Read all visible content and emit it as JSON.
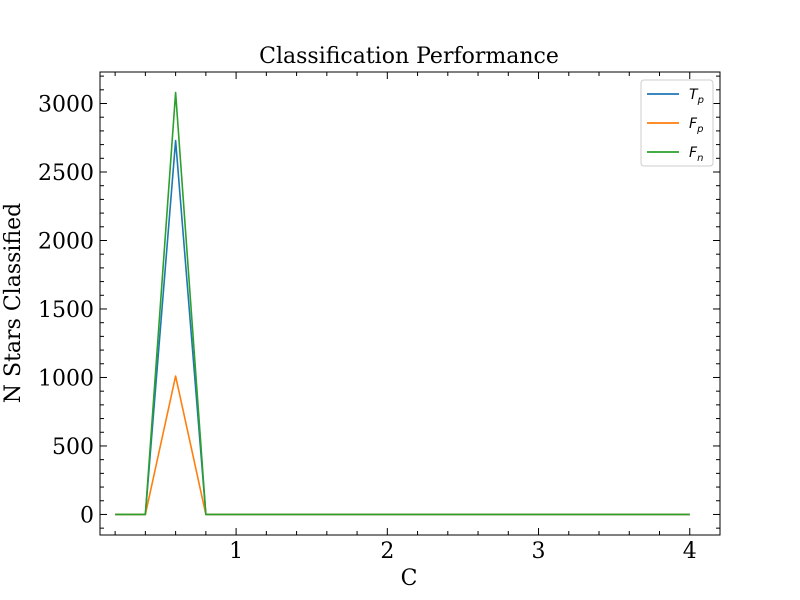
{
  "chart_data": {
    "type": "line",
    "title": "Classification Performance",
    "xlabel": "C",
    "ylabel": "N Stars Classified",
    "xlim": [
      0.1,
      4.2
    ],
    "ylim": [
      -150,
      3230
    ],
    "xticks": [
      1,
      2,
      3,
      4
    ],
    "xtick_labels": [
      "1",
      "2",
      "3",
      "4"
    ],
    "yticks": [
      0,
      500,
      1000,
      1500,
      2000,
      2500,
      3000
    ],
    "ytick_labels": [
      "0",
      "500",
      "1000",
      "1500",
      "2000",
      "2500",
      "3000"
    ],
    "grid": false,
    "legend_position": "top-right",
    "x": [
      0.2,
      0.4,
      0.6,
      0.8,
      1.0,
      1.2,
      1.4,
      1.6,
      1.8,
      2.0,
      2.2,
      2.4,
      2.6,
      2.8,
      3.0,
      3.2,
      3.4,
      3.6,
      3.8,
      4.0
    ],
    "series": [
      {
        "name": "T",
        "subscript": "p",
        "color": "#1f77b4",
        "values": [
          0,
          0,
          2730,
          0,
          0,
          0,
          0,
          0,
          0,
          0,
          0,
          0,
          0,
          0,
          0,
          0,
          0,
          0,
          0,
          0
        ]
      },
      {
        "name": "F",
        "subscript": "p",
        "color": "#ff7f0e",
        "values": [
          0,
          0,
          1010,
          0,
          0,
          0,
          0,
          0,
          0,
          0,
          0,
          0,
          0,
          0,
          0,
          0,
          0,
          0,
          0,
          0
        ]
      },
      {
        "name": "F",
        "subscript": "n",
        "color": "#2ca02c",
        "values": [
          0,
          0,
          3080,
          0,
          0,
          0,
          0,
          0,
          0,
          0,
          0,
          0,
          0,
          0,
          0,
          0,
          0,
          0,
          0,
          0
        ]
      }
    ]
  }
}
